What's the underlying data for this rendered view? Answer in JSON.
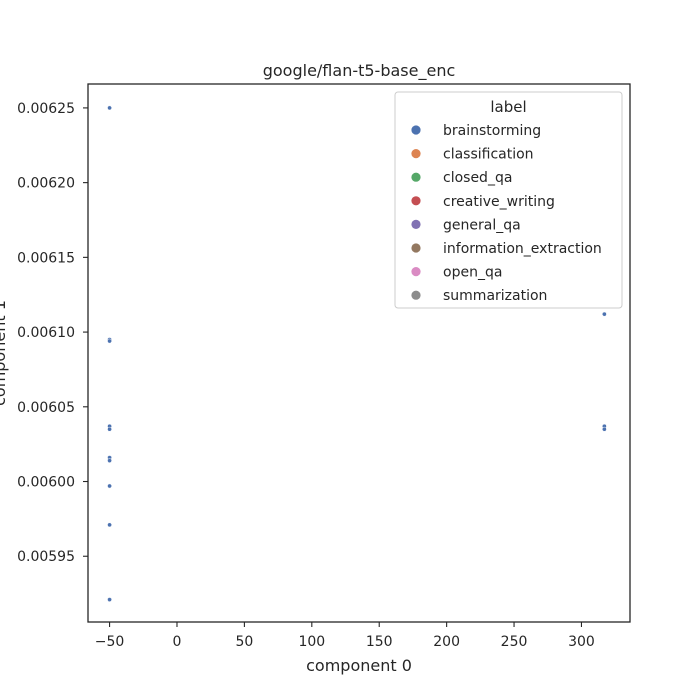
{
  "chart_data": {
    "type": "scatter",
    "title": "google/flan-t5-base_enc",
    "xlabel": "component 0",
    "ylabel": "component 1",
    "xlim": [
      -66,
      336
    ],
    "ylim": [
      0.005906,
      0.006266
    ],
    "x_ticks": [
      -50,
      0,
      50,
      100,
      150,
      200,
      250,
      300
    ],
    "x_tick_labels": [
      "−50",
      "0",
      "50",
      "100",
      "150",
      "200",
      "250",
      "300"
    ],
    "y_ticks": [
      0.00595,
      0.006,
      0.00605,
      0.0061,
      0.00615,
      0.0062,
      0.00625
    ],
    "y_tick_labels": [
      "0.00595",
      "0.00600",
      "0.00605",
      "0.00610",
      "0.00615",
      "0.00620",
      "0.00625"
    ],
    "grid": false,
    "legend": {
      "title": "label",
      "placement": "top-right",
      "entries": [
        {
          "name": "brainstorming",
          "color": "#4c72b0"
        },
        {
          "name": "classification",
          "color": "#dd8452"
        },
        {
          "name": "closed_qa",
          "color": "#55a868"
        },
        {
          "name": "creative_writing",
          "color": "#c44e52"
        },
        {
          "name": "general_qa",
          "color": "#8172b3"
        },
        {
          "name": "information_extraction",
          "color": "#937860"
        },
        {
          "name": "open_qa",
          "color": "#da8bc3"
        },
        {
          "name": "summarization",
          "color": "#8c8c8c"
        }
      ]
    },
    "series": [
      {
        "name": "brainstorming",
        "color": "#4c72b0",
        "points": [
          {
            "x": -50,
            "y": 0.00625
          },
          {
            "x": -50,
            "y": 0.006095
          },
          {
            "x": -50,
            "y": 0.006094
          },
          {
            "x": -50,
            "y": 0.006037
          },
          {
            "x": -50,
            "y": 0.006035
          },
          {
            "x": -50,
            "y": 0.006016
          },
          {
            "x": -50,
            "y": 0.006014
          },
          {
            "x": -50,
            "y": 0.005997
          },
          {
            "x": -50,
            "y": 0.005971
          },
          {
            "x": -50,
            "y": 0.005921
          },
          {
            "x": 317,
            "y": 0.006112
          },
          {
            "x": 317,
            "y": 0.006037
          },
          {
            "x": 317,
            "y": 0.006035
          }
        ]
      }
    ]
  }
}
